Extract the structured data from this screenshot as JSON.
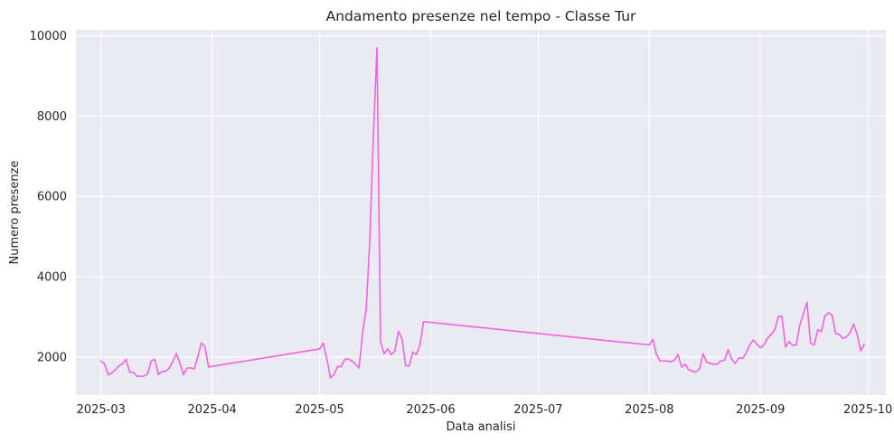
{
  "chart_data": {
    "type": "line",
    "title": "Andamento presenze nel tempo - Classe Tur",
    "xlabel": "Data analisi",
    "ylabel": "Numero presenze",
    "xlim": [
      "2025-02-22",
      "2025-10-06"
    ],
    "ylim": [
      1050,
      10150
    ],
    "x_ticks": [
      "2025-03",
      "2025-04",
      "2025-05",
      "2025-06",
      "2025-07",
      "2025-08",
      "2025-09",
      "2025-10"
    ],
    "y_ticks": [
      2000,
      4000,
      6000,
      8000,
      10000
    ],
    "grid": true,
    "background": "#eaeaf2",
    "series": [
      {
        "color": "#f263e0",
        "points": [
          [
            "2025-03-01",
            1900
          ],
          [
            "2025-03-02",
            1820
          ],
          [
            "2025-03-03",
            1560
          ],
          [
            "2025-03-04",
            1600
          ],
          [
            "2025-03-05",
            1680
          ],
          [
            "2025-03-06",
            1780
          ],
          [
            "2025-03-07",
            1830
          ],
          [
            "2025-03-08",
            1940
          ],
          [
            "2025-03-09",
            1620
          ],
          [
            "2025-03-10",
            1620
          ],
          [
            "2025-03-11",
            1520
          ],
          [
            "2025-03-12",
            1520
          ],
          [
            "2025-03-13",
            1520
          ],
          [
            "2025-03-14",
            1580
          ],
          [
            "2025-03-15",
            1900
          ],
          [
            "2025-03-16",
            1940
          ],
          [
            "2025-03-17",
            1560
          ],
          [
            "2025-03-18",
            1640
          ],
          [
            "2025-03-19",
            1640
          ],
          [
            "2025-03-20",
            1720
          ],
          [
            "2025-03-21",
            1880
          ],
          [
            "2025-03-22",
            2080
          ],
          [
            "2025-03-23",
            1850
          ],
          [
            "2025-03-24",
            1560
          ],
          [
            "2025-03-25",
            1720
          ],
          [
            "2025-03-26",
            1730
          ],
          [
            "2025-03-27",
            1700
          ],
          [
            "2025-03-28",
            2000
          ],
          [
            "2025-03-29",
            2350
          ],
          [
            "2025-03-30",
            2250
          ],
          [
            "2025-03-31",
            1750
          ],
          [
            "2025-05-01",
            2200
          ],
          [
            "2025-05-02",
            2340
          ],
          [
            "2025-05-03",
            1960
          ],
          [
            "2025-05-04",
            1480
          ],
          [
            "2025-05-05",
            1560
          ],
          [
            "2025-05-06",
            1760
          ],
          [
            "2025-05-07",
            1760
          ],
          [
            "2025-05-08",
            1940
          ],
          [
            "2025-05-09",
            1950
          ],
          [
            "2025-05-10",
            1900
          ],
          [
            "2025-05-11",
            1820
          ],
          [
            "2025-05-12",
            1730
          ],
          [
            "2025-05-13",
            2600
          ],
          [
            "2025-05-14",
            3200
          ],
          [
            "2025-05-15",
            4900
          ],
          [
            "2025-05-16",
            7500
          ],
          [
            "2025-05-17",
            9700
          ],
          [
            "2025-05-18",
            2380
          ],
          [
            "2025-05-19",
            2080
          ],
          [
            "2025-05-20",
            2200
          ],
          [
            "2025-05-21",
            2060
          ],
          [
            "2025-05-22",
            2150
          ],
          [
            "2025-05-23",
            2640
          ],
          [
            "2025-05-24",
            2450
          ],
          [
            "2025-05-25",
            1780
          ],
          [
            "2025-05-26",
            1780
          ],
          [
            "2025-05-27",
            2120
          ],
          [
            "2025-05-28",
            2060
          ],
          [
            "2025-05-29",
            2300
          ],
          [
            "2025-05-30",
            2880
          ],
          [
            "2025-08-01",
            2300
          ],
          [
            "2025-08-02",
            2440
          ],
          [
            "2025-08-03",
            2060
          ],
          [
            "2025-08-04",
            1900
          ],
          [
            "2025-08-05",
            1900
          ],
          [
            "2025-08-06",
            1900
          ],
          [
            "2025-08-07",
            1880
          ],
          [
            "2025-08-08",
            1920
          ],
          [
            "2025-08-09",
            2060
          ],
          [
            "2025-08-10",
            1750
          ],
          [
            "2025-08-11",
            1820
          ],
          [
            "2025-08-12",
            1680
          ],
          [
            "2025-08-13",
            1650
          ],
          [
            "2025-08-14",
            1620
          ],
          [
            "2025-08-15",
            1700
          ],
          [
            "2025-08-16",
            2080
          ],
          [
            "2025-08-17",
            1870
          ],
          [
            "2025-08-18",
            1840
          ],
          [
            "2025-08-19",
            1820
          ],
          [
            "2025-08-20",
            1820
          ],
          [
            "2025-08-21",
            1900
          ],
          [
            "2025-08-22",
            1920
          ],
          [
            "2025-08-23",
            2180
          ],
          [
            "2025-08-24",
            1940
          ],
          [
            "2025-08-25",
            1840
          ],
          [
            "2025-08-26",
            1980
          ],
          [
            "2025-08-27",
            1960
          ],
          [
            "2025-08-28",
            2100
          ],
          [
            "2025-08-29",
            2300
          ],
          [
            "2025-08-30",
            2420
          ],
          [
            "2025-08-31",
            2320
          ],
          [
            "2025-09-01",
            2230
          ],
          [
            "2025-09-02",
            2300
          ],
          [
            "2025-09-03",
            2470
          ],
          [
            "2025-09-04",
            2560
          ],
          [
            "2025-09-05",
            2680
          ],
          [
            "2025-09-06",
            3000
          ],
          [
            "2025-09-07",
            3020
          ],
          [
            "2025-09-08",
            2250
          ],
          [
            "2025-09-09",
            2380
          ],
          [
            "2025-09-10",
            2290
          ],
          [
            "2025-09-11",
            2300
          ],
          [
            "2025-09-12",
            2800
          ],
          [
            "2025-09-13",
            3080
          ],
          [
            "2025-09-14",
            3360
          ],
          [
            "2025-09-15",
            2340
          ],
          [
            "2025-09-16",
            2300
          ],
          [
            "2025-09-17",
            2680
          ],
          [
            "2025-09-18",
            2630
          ],
          [
            "2025-09-19",
            3020
          ],
          [
            "2025-09-20",
            3100
          ],
          [
            "2025-09-21",
            3040
          ],
          [
            "2025-09-22",
            2580
          ],
          [
            "2025-09-23",
            2560
          ],
          [
            "2025-09-24",
            2460
          ],
          [
            "2025-09-25",
            2500
          ],
          [
            "2025-09-26",
            2600
          ],
          [
            "2025-09-27",
            2820
          ],
          [
            "2025-09-28",
            2560
          ],
          [
            "2025-09-29",
            2150
          ],
          [
            "2025-09-30",
            2320
          ]
        ]
      }
    ]
  }
}
